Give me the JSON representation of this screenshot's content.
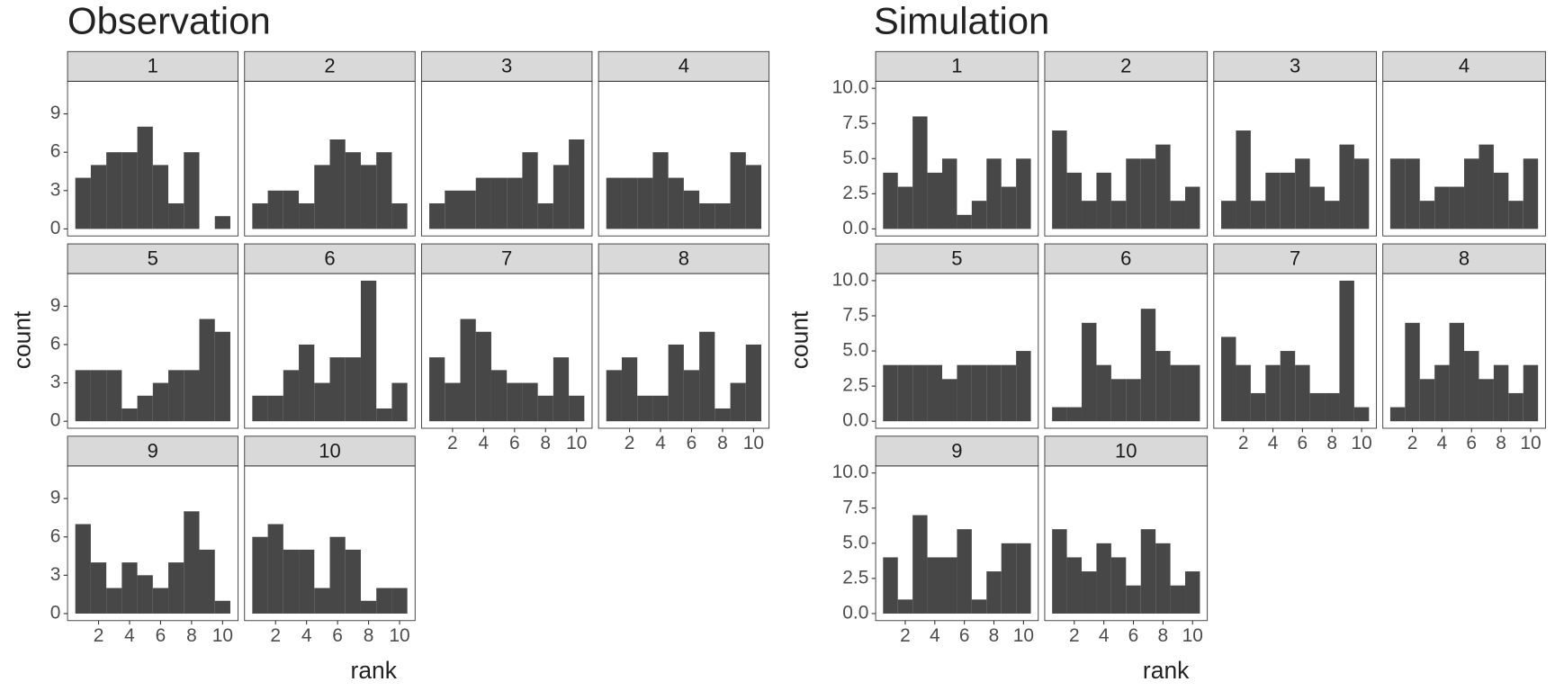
{
  "chart_data": [
    {
      "type": "histogram",
      "title": "Observation",
      "xlabel": "rank",
      "ylabel": "count",
      "color": "#474747",
      "bins": [
        0.5,
        1.5,
        2.5,
        3.5,
        4.5,
        5.5,
        6.5,
        7.5,
        8.5,
        9.5,
        10.5
      ],
      "xlim": [
        0,
        11
      ],
      "xticks": [
        2,
        4,
        6,
        8,
        10
      ],
      "ylim": [
        -0.55,
        11.55
      ],
      "yticks": [
        0,
        3,
        6,
        9
      ],
      "panels": [
        {
          "label": "1",
          "values": [
            4,
            5,
            6,
            6,
            8,
            5,
            2,
            6,
            0,
            1
          ]
        },
        {
          "label": "2",
          "values": [
            2,
            3,
            3,
            2,
            5,
            7,
            6,
            5,
            6,
            2
          ]
        },
        {
          "label": "3",
          "values": [
            2,
            3,
            3,
            4,
            4,
            4,
            6,
            2,
            5,
            7
          ]
        },
        {
          "label": "4",
          "values": [
            4,
            4,
            4,
            6,
            4,
            3,
            2,
            2,
            6,
            5
          ]
        },
        {
          "label": "5",
          "values": [
            4,
            4,
            4,
            1,
            2,
            3,
            4,
            4,
            8,
            7
          ]
        },
        {
          "label": "6",
          "values": [
            2,
            2,
            4,
            6,
            3,
            5,
            5,
            11,
            1,
            3
          ]
        },
        {
          "label": "7",
          "values": [
            5,
            3,
            8,
            7,
            4,
            3,
            3,
            2,
            5,
            2
          ]
        },
        {
          "label": "8",
          "values": [
            4,
            5,
            2,
            2,
            6,
            4,
            7,
            1,
            3,
            6
          ]
        },
        {
          "label": "9",
          "values": [
            7,
            4,
            2,
            4,
            3,
            2,
            4,
            8,
            5,
            1
          ]
        },
        {
          "label": "10",
          "values": [
            6,
            7,
            5,
            5,
            2,
            6,
            5,
            1,
            2,
            2
          ]
        }
      ]
    },
    {
      "type": "histogram",
      "title": "Simulation",
      "xlabel": "rank",
      "ylabel": "count",
      "color": "#474747",
      "bins": [
        0.5,
        1.5,
        2.5,
        3.5,
        4.5,
        5.5,
        6.5,
        7.5,
        8.5,
        9.5,
        10.5
      ],
      "xlim": [
        0,
        11
      ],
      "xticks": [
        2,
        4,
        6,
        8,
        10
      ],
      "ylim": [
        -0.5,
        10.5
      ],
      "yticks": [
        {
          "value": 0,
          "label": "0.0"
        },
        {
          "value": 2.5,
          "label": "2.5"
        },
        {
          "value": 5,
          "label": "5.0"
        },
        {
          "value": 7.5,
          "label": "7.5"
        },
        {
          "value": 10,
          "label": "10.0"
        }
      ],
      "panels": [
        {
          "label": "1",
          "values": [
            4,
            3,
            8,
            4,
            5,
            1,
            2,
            5,
            3,
            5
          ]
        },
        {
          "label": "2",
          "values": [
            7,
            4,
            2,
            4,
            2,
            5,
            5,
            6,
            2,
            3
          ]
        },
        {
          "label": "3",
          "values": [
            2,
            7,
            2,
            4,
            4,
            5,
            3,
            2,
            6,
            5
          ]
        },
        {
          "label": "4",
          "values": [
            5,
            5,
            2,
            3,
            3,
            5,
            6,
            4,
            2,
            5
          ]
        },
        {
          "label": "5",
          "values": [
            4,
            4,
            4,
            4,
            3,
            4,
            4,
            4,
            4,
            5
          ]
        },
        {
          "label": "6",
          "values": [
            1,
            1,
            7,
            4,
            3,
            3,
            8,
            5,
            4,
            4
          ]
        },
        {
          "label": "7",
          "values": [
            6,
            4,
            2,
            4,
            5,
            4,
            2,
            2,
            10,
            1
          ]
        },
        {
          "label": "8",
          "values": [
            1,
            7,
            3,
            4,
            7,
            5,
            3,
            4,
            2,
            4
          ]
        },
        {
          "label": "9",
          "values": [
            4,
            1,
            7,
            4,
            4,
            6,
            1,
            3,
            5,
            5
          ]
        },
        {
          "label": "10",
          "values": [
            6,
            4,
            3,
            5,
            4,
            2,
            6,
            5,
            2,
            3
          ]
        }
      ]
    }
  ]
}
